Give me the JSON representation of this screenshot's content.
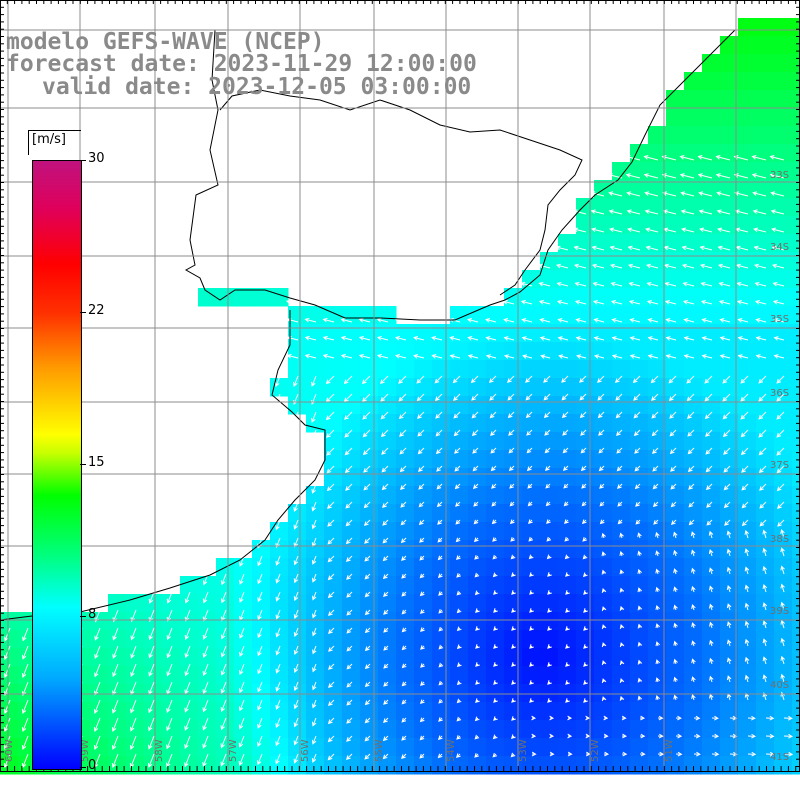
{
  "header": {
    "model": "modelo GEFS-WAVE (NCEP)",
    "forecast": "forecast date: 2023-11-29 12:00:00",
    "valid": "valid date: 2023-12-05 03:00:00"
  },
  "colorbar": {
    "unit": "[m/s]",
    "labels": [
      "30",
      "22",
      "15",
      "8",
      "0"
    ],
    "values": [
      30,
      22,
      15,
      8,
      0
    ],
    "min": 0,
    "max": 30,
    "colors": [
      "#0000ff",
      "#00aaff",
      "#00ffff",
      "#00ff80",
      "#00ff00",
      "#ffff00",
      "#ff9a00",
      "#ff0000",
      "#c0127e"
    ]
  },
  "map": {
    "lon_labels": [
      "60W",
      "59W",
      "58W",
      "57W",
      "56W",
      "55W",
      "54W",
      "53W",
      "52W",
      "51W"
    ],
    "lat_labels": [
      "33S",
      "34S",
      "35S",
      "36S",
      "37S",
      "38S",
      "39S",
      "40S",
      "41S"
    ],
    "land_color": "#ffffff",
    "grid_color": "#8c8c8c",
    "arrow_color": "#ffffff"
  }
}
